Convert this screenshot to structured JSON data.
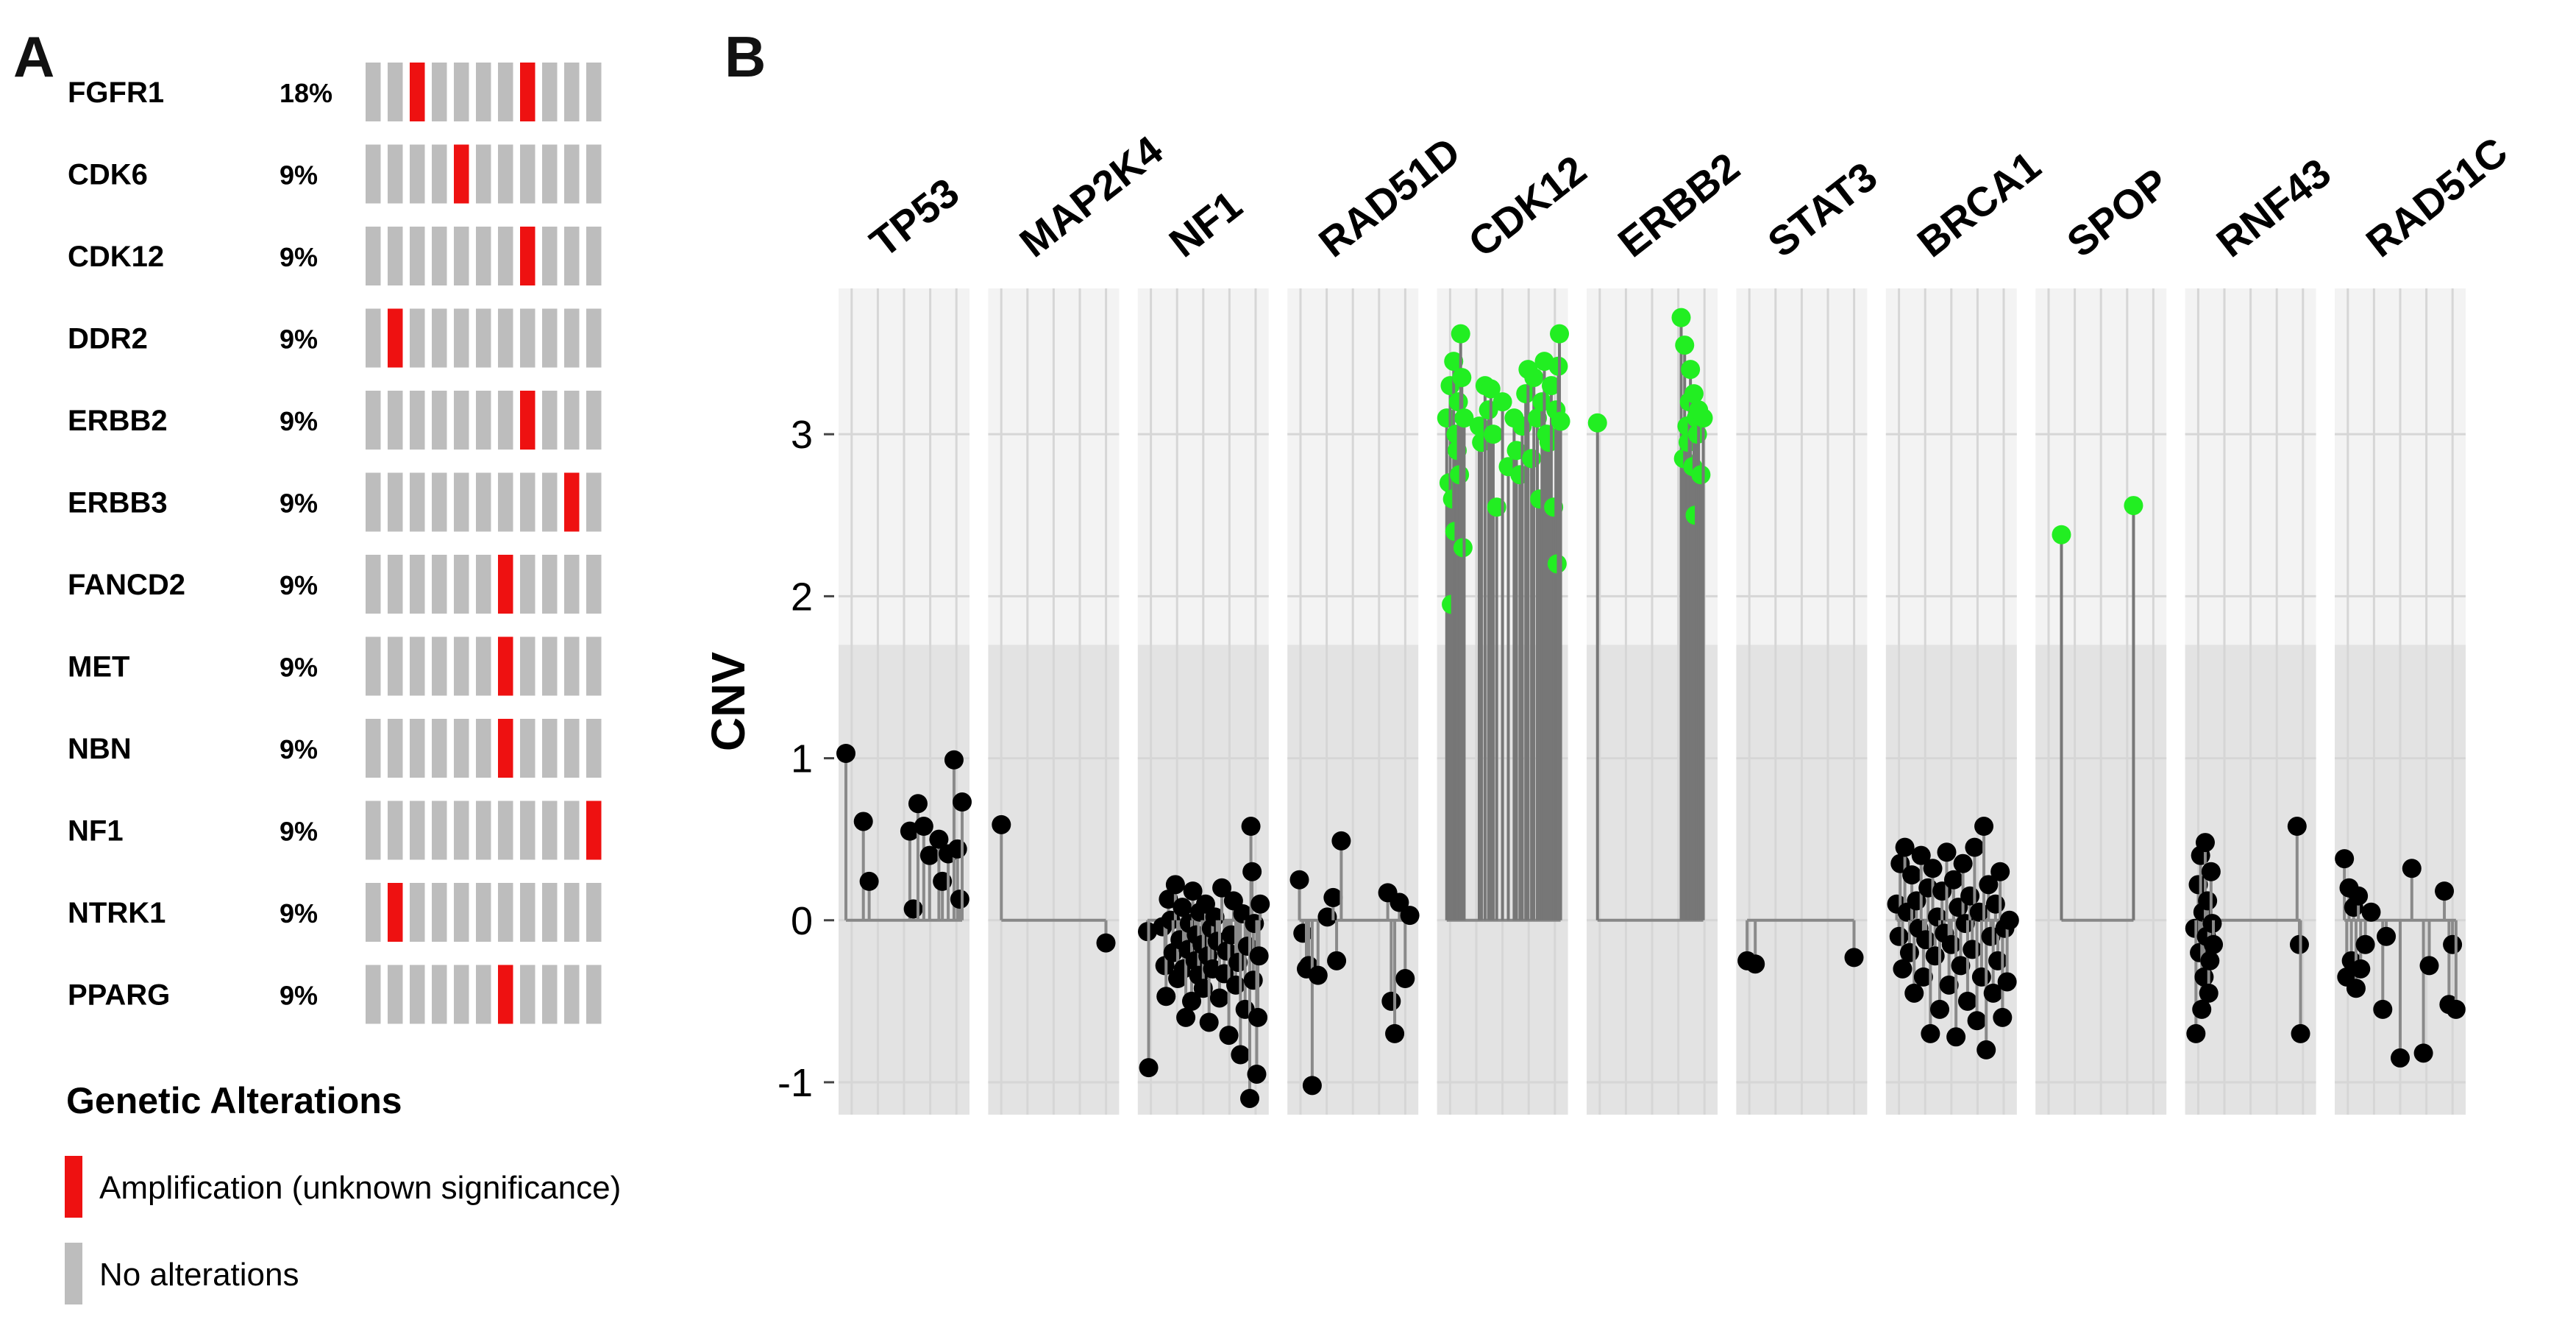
{
  "panel_a_label": "A",
  "panel_b_label": "B",
  "chart_data": [
    {
      "type": "oncoprint",
      "samples": 11,
      "genes": [
        {
          "name": "FGFR1",
          "percent": "18%",
          "altered_samples": [
            2,
            7
          ]
        },
        {
          "name": "CDK6",
          "percent": "9%",
          "altered_samples": [
            4
          ]
        },
        {
          "name": "CDK12",
          "percent": "9%",
          "altered_samples": [
            7
          ]
        },
        {
          "name": "DDR2",
          "percent": "9%",
          "altered_samples": [
            1
          ]
        },
        {
          "name": "ERBB2",
          "percent": "9%",
          "altered_samples": [
            7
          ]
        },
        {
          "name": "ERBB3",
          "percent": "9%",
          "altered_samples": [
            9
          ]
        },
        {
          "name": "FANCD2",
          "percent": "9%",
          "altered_samples": [
            6
          ]
        },
        {
          "name": "MET",
          "percent": "9%",
          "altered_samples": [
            6
          ]
        },
        {
          "name": "NBN",
          "percent": "9%",
          "altered_samples": [
            6
          ]
        },
        {
          "name": "NF1",
          "percent": "9%",
          "altered_samples": [
            10
          ]
        },
        {
          "name": "NTRK1",
          "percent": "9%",
          "altered_samples": [
            1
          ]
        },
        {
          "name": "PPARG",
          "percent": "9%",
          "altered_samples": [
            6
          ]
        }
      ],
      "legend": {
        "title": "Genetic Alterations",
        "items": [
          {
            "label": "Amplification (unknown significance)",
            "color": "#ee1111"
          },
          {
            "label": "No alterations",
            "color": "#bdbdbd"
          }
        ]
      }
    },
    {
      "type": "scatter",
      "ylabel": "CNV",
      "ylim": [
        -1.2,
        3.9
      ],
      "yticks": [
        -1,
        0,
        1,
        2,
        3
      ],
      "threshold": 1.7,
      "colors": {
        "normal": "#000000",
        "amplified": "#22ee22"
      },
      "facets": [
        {
          "name": "TP53",
          "points": [
            [
              0.0,
              1.03
            ],
            [
              0.15,
              0.61
            ],
            [
              0.2,
              0.24
            ],
            [
              0.55,
              0.55
            ],
            [
              0.58,
              0.07
            ],
            [
              0.62,
              0.72
            ],
            [
              0.67,
              0.58
            ],
            [
              0.72,
              0.4
            ],
            [
              0.8,
              0.5
            ],
            [
              0.83,
              0.24
            ],
            [
              0.88,
              0.41
            ],
            [
              0.93,
              0.99
            ],
            [
              0.96,
              0.44
            ],
            [
              0.98,
              0.13
            ],
            [
              1.0,
              0.73
            ]
          ]
        },
        {
          "name": "MAP2K4",
          "points": [
            [
              0.05,
              0.59
            ],
            [
              0.95,
              -0.14
            ]
          ]
        },
        {
          "name": "NF1",
          "points": [
            [
              0.02,
              -0.07
            ],
            [
              0.03,
              -0.91
            ],
            [
              0.15,
              -0.04
            ],
            [
              0.17,
              -0.28
            ],
            [
              0.18,
              -0.47
            ],
            [
              0.2,
              0.13
            ],
            [
              0.22,
              0.0
            ],
            [
              0.24,
              -0.2
            ],
            [
              0.26,
              0.22
            ],
            [
              0.28,
              -0.36
            ],
            [
              0.3,
              -0.12
            ],
            [
              0.32,
              0.08
            ],
            [
              0.33,
              -0.3
            ],
            [
              0.35,
              -0.6
            ],
            [
              0.37,
              -0.18
            ],
            [
              0.38,
              -0.02
            ],
            [
              0.4,
              -0.5
            ],
            [
              0.41,
              0.18
            ],
            [
              0.43,
              -0.25
            ],
            [
              0.44,
              -0.09
            ],
            [
              0.46,
              -0.34
            ],
            [
              0.47,
              0.05
            ],
            [
              0.49,
              -0.15
            ],
            [
              0.5,
              -0.42
            ],
            [
              0.52,
              0.1
            ],
            [
              0.54,
              -0.22
            ],
            [
              0.55,
              -0.63
            ],
            [
              0.57,
              -0.05
            ],
            [
              0.58,
              -0.3
            ],
            [
              0.6,
              0.02
            ],
            [
              0.62,
              -0.13
            ],
            [
              0.64,
              -0.48
            ],
            [
              0.66,
              0.2
            ],
            [
              0.68,
              -0.33
            ],
            [
              0.7,
              -0.19
            ],
            [
              0.72,
              -0.71
            ],
            [
              0.74,
              -0.09
            ],
            [
              0.76,
              0.12
            ],
            [
              0.78,
              -0.4
            ],
            [
              0.8,
              -0.26
            ],
            [
              0.82,
              -0.83
            ],
            [
              0.84,
              0.04
            ],
            [
              0.86,
              -0.55
            ],
            [
              0.88,
              -0.16
            ],
            [
              0.9,
              -1.1
            ],
            [
              0.91,
              0.58
            ],
            [
              0.92,
              0.3
            ],
            [
              0.93,
              -0.37
            ],
            [
              0.94,
              -0.02
            ],
            [
              0.96,
              -0.95
            ],
            [
              0.97,
              -0.6
            ],
            [
              0.98,
              -0.22
            ],
            [
              0.99,
              0.1
            ]
          ]
        },
        {
          "name": "RAD51D",
          "points": [
            [
              0.04,
              0.25
            ],
            [
              0.07,
              -0.08
            ],
            [
              0.1,
              -0.3
            ],
            [
              0.12,
              -0.28
            ],
            [
              0.15,
              -1.02
            ],
            [
              0.2,
              -0.34
            ],
            [
              0.28,
              0.02
            ],
            [
              0.33,
              0.14
            ],
            [
              0.36,
              -0.25
            ],
            [
              0.4,
              0.49
            ],
            [
              0.8,
              0.17
            ],
            [
              0.83,
              -0.5
            ],
            [
              0.86,
              -0.7
            ],
            [
              0.9,
              0.11
            ],
            [
              0.95,
              -0.36
            ],
            [
              0.99,
              0.03
            ]
          ]
        },
        {
          "name": "CDK12",
          "points": [
            [
              0.02,
              3.1
            ],
            [
              0.04,
              2.7
            ],
            [
              0.05,
              3.3
            ],
            [
              0.06,
              1.95
            ],
            [
              0.07,
              2.6
            ],
            [
              0.08,
              3.45
            ],
            [
              0.09,
              2.4
            ],
            [
              0.1,
              3.0
            ],
            [
              0.11,
              2.9
            ],
            [
              0.12,
              3.2
            ],
            [
              0.13,
              2.75
            ],
            [
              0.14,
              3.62
            ],
            [
              0.15,
              3.35
            ],
            [
              0.16,
              2.3
            ],
            [
              0.17,
              3.1
            ],
            [
              0.3,
              3.05
            ],
            [
              0.32,
              2.95
            ],
            [
              0.35,
              3.3
            ],
            [
              0.38,
              3.15
            ],
            [
              0.4,
              3.28
            ],
            [
              0.42,
              3.0
            ],
            [
              0.45,
              2.55
            ],
            [
              0.5,
              3.2
            ],
            [
              0.55,
              2.8
            ],
            [
              0.6,
              3.1
            ],
            [
              0.62,
              2.9
            ],
            [
              0.65,
              2.75
            ],
            [
              0.67,
              3.05
            ],
            [
              0.7,
              3.25
            ],
            [
              0.72,
              3.4
            ],
            [
              0.75,
              2.85
            ],
            [
              0.77,
              3.35
            ],
            [
              0.8,
              3.1
            ],
            [
              0.82,
              2.6
            ],
            [
              0.84,
              3.2
            ],
            [
              0.86,
              3.45
            ],
            [
              0.88,
              3.0
            ],
            [
              0.9,
              2.95
            ],
            [
              0.92,
              3.3
            ],
            [
              0.94,
              2.55
            ],
            [
              0.96,
              3.15
            ],
            [
              0.97,
              2.2
            ],
            [
              0.98,
              3.42
            ],
            [
              0.99,
              3.62
            ],
            [
              1.0,
              3.08
            ]
          ]
        },
        {
          "name": "ERBB2",
          "points": [
            [
              0.03,
              3.07
            ],
            [
              0.75,
              3.72
            ],
            [
              0.77,
              2.85
            ],
            [
              0.78,
              3.55
            ],
            [
              0.8,
              3.05
            ],
            [
              0.81,
              2.95
            ],
            [
              0.82,
              3.2
            ],
            [
              0.83,
              3.4
            ],
            [
              0.85,
              2.8
            ],
            [
              0.86,
              3.25
            ],
            [
              0.87,
              2.5
            ],
            [
              0.88,
              3.1
            ],
            [
              0.89,
              3.0
            ],
            [
              0.9,
              3.15
            ],
            [
              0.92,
              2.75
            ],
            [
              0.94,
              3.1
            ]
          ]
        },
        {
          "name": "STAT3",
          "points": [
            [
              0.03,
              -0.25
            ],
            [
              0.1,
              -0.27
            ],
            [
              0.95,
              -0.23
            ]
          ]
        },
        {
          "name": "BRCA1",
          "points": [
            [
              0.03,
              0.1
            ],
            [
              0.05,
              -0.1
            ],
            [
              0.06,
              0.35
            ],
            [
              0.08,
              -0.3
            ],
            [
              0.1,
              0.45
            ],
            [
              0.12,
              0.05
            ],
            [
              0.14,
              -0.2
            ],
            [
              0.16,
              0.28
            ],
            [
              0.18,
              -0.45
            ],
            [
              0.2,
              0.12
            ],
            [
              0.22,
              -0.05
            ],
            [
              0.24,
              0.4
            ],
            [
              0.26,
              -0.35
            ],
            [
              0.28,
              -0.12
            ],
            [
              0.3,
              0.2
            ],
            [
              0.32,
              -0.7
            ],
            [
              0.34,
              0.32
            ],
            [
              0.36,
              -0.22
            ],
            [
              0.38,
              0.02
            ],
            [
              0.4,
              -0.55
            ],
            [
              0.42,
              0.18
            ],
            [
              0.44,
              -0.08
            ],
            [
              0.46,
              0.42
            ],
            [
              0.48,
              -0.4
            ],
            [
              0.5,
              -0.15
            ],
            [
              0.52,
              0.25
            ],
            [
              0.54,
              -0.72
            ],
            [
              0.56,
              0.08
            ],
            [
              0.58,
              -0.28
            ],
            [
              0.6,
              0.35
            ],
            [
              0.62,
              -0.02
            ],
            [
              0.64,
              -0.5
            ],
            [
              0.66,
              0.15
            ],
            [
              0.68,
              -0.18
            ],
            [
              0.7,
              0.45
            ],
            [
              0.72,
              -0.62
            ],
            [
              0.74,
              0.05
            ],
            [
              0.76,
              -0.35
            ],
            [
              0.78,
              0.58
            ],
            [
              0.8,
              -0.8
            ],
            [
              0.82,
              0.22
            ],
            [
              0.84,
              -0.1
            ],
            [
              0.86,
              -0.45
            ],
            [
              0.88,
              0.1
            ],
            [
              0.9,
              -0.25
            ],
            [
              0.92,
              0.3
            ],
            [
              0.94,
              -0.6
            ],
            [
              0.96,
              -0.05
            ],
            [
              0.98,
              -0.38
            ],
            [
              1.0,
              0.0
            ]
          ]
        },
        {
          "name": "SPOP",
          "points": [
            [
              0.16,
              2.38
            ],
            [
              0.78,
              2.56
            ]
          ]
        },
        {
          "name": "RNF43",
          "points": [
            [
              0.02,
              -0.05
            ],
            [
              0.03,
              -0.7
            ],
            [
              0.05,
              0.22
            ],
            [
              0.06,
              -0.2
            ],
            [
              0.07,
              0.4
            ],
            [
              0.08,
              -0.55
            ],
            [
              0.09,
              0.05
            ],
            [
              0.1,
              -0.35
            ],
            [
              0.11,
              0.48
            ],
            [
              0.12,
              -0.1
            ],
            [
              0.13,
              0.12
            ],
            [
              0.14,
              -0.45
            ],
            [
              0.15,
              -0.25
            ],
            [
              0.16,
              0.3
            ],
            [
              0.17,
              -0.02
            ],
            [
              0.18,
              -0.15
            ],
            [
              0.9,
              0.58
            ],
            [
              0.92,
              -0.15
            ],
            [
              0.93,
              -0.7
            ]
          ]
        },
        {
          "name": "RAD51C",
          "points": [
            [
              0.02,
              0.38
            ],
            [
              0.04,
              -0.35
            ],
            [
              0.06,
              0.2
            ],
            [
              0.08,
              -0.25
            ],
            [
              0.1,
              0.08
            ],
            [
              0.12,
              -0.42
            ],
            [
              0.14,
              0.15
            ],
            [
              0.16,
              -0.3
            ],
            [
              0.2,
              -0.15
            ],
            [
              0.25,
              0.05
            ],
            [
              0.35,
              -0.55
            ],
            [
              0.38,
              -0.1
            ],
            [
              0.5,
              -0.85
            ],
            [
              0.6,
              0.32
            ],
            [
              0.7,
              -0.82
            ],
            [
              0.75,
              -0.28
            ],
            [
              0.88,
              0.18
            ],
            [
              0.92,
              -0.52
            ],
            [
              0.95,
              -0.15
            ],
            [
              0.98,
              -0.55
            ]
          ]
        }
      ]
    }
  ]
}
